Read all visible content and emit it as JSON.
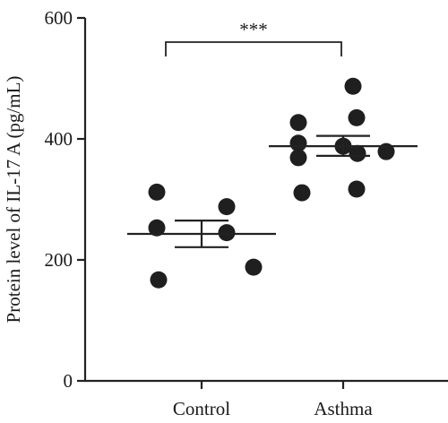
{
  "chart_data": {
    "type": "scatter",
    "title": "",
    "xlabel": "",
    "ylabel": "Protein level of IL-17 A (pg/mL)",
    "ylim": [
      0,
      600
    ],
    "yticks": [
      0,
      200,
      400,
      600
    ],
    "y_tick_labels": [
      "0",
      "200",
      "400",
      "600"
    ],
    "grid": false,
    "legend": "none",
    "categories": [
      "Control",
      "Asthma"
    ],
    "series": [
      {
        "category": "Control",
        "values": [
          312,
          288,
          253,
          245,
          188,
          167
        ],
        "mean": 243,
        "sem_low": 221,
        "sem_high": 265
      },
      {
        "category": "Asthma",
        "values": [
          487,
          435,
          427,
          393,
          388,
          376,
          379,
          369,
          317,
          311
        ],
        "mean": 388,
        "sem_low": 372,
        "sem_high": 405
      }
    ],
    "annotations": [
      {
        "type": "significance",
        "text": "***",
        "between": [
          "Control",
          "Asthma"
        ],
        "y": 560
      }
    ],
    "colors": {
      "points": "#1f1f1f",
      "axes": "#222222"
    }
  }
}
